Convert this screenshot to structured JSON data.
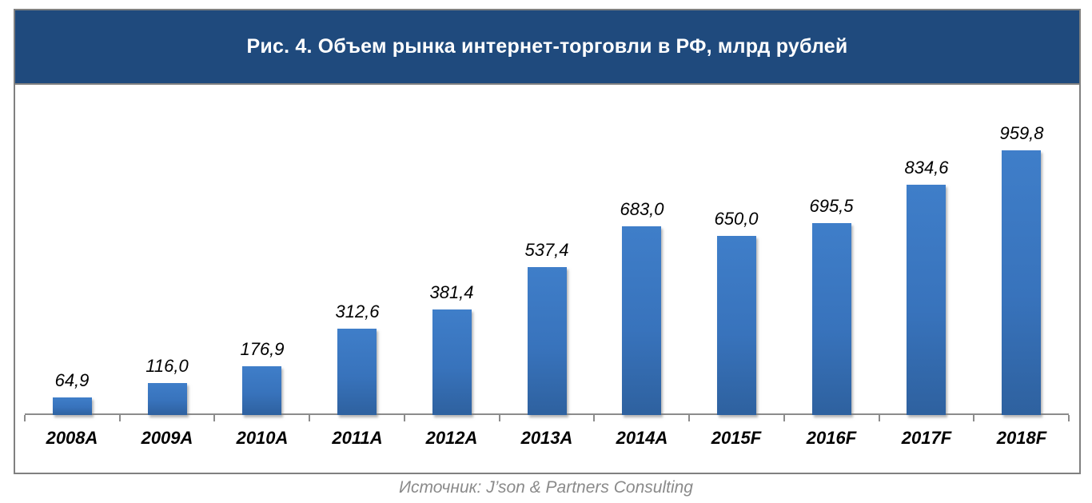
{
  "header": {
    "title": "Рис. 4. Объем рынка интернет-торговли в РФ, млрд рублей"
  },
  "source": {
    "caption": "Источник: J’son & Partners Consulting"
  },
  "colors": {
    "header_bg": "#1F4A7D",
    "header_text": "#FFFFFF",
    "bar_top": "#3F7EC9",
    "bar_mid": "#3873BC",
    "bar_bottom": "#2E619F",
    "axis": "#8C8C8C",
    "frame_border": "#808080",
    "label": "#000000",
    "source_text": "#8A8A8A"
  },
  "chart_data": {
    "type": "bar",
    "title": "Рис. 4. Объем рынка интернет-торговли в РФ, млрд рублей",
    "xlabel": "",
    "ylabel": "млрд рублей",
    "categories": [
      "2008A",
      "2009A",
      "2010A",
      "2011A",
      "2012A",
      "2013A",
      "2014A",
      "2015F",
      "2016F",
      "2017F",
      "2018F"
    ],
    "values": [
      64.9,
      116.0,
      176.9,
      312.6,
      381.4,
      537.4,
      683.0,
      650.0,
      695.5,
      834.6,
      959.8
    ],
    "value_labels": [
      "64,9",
      "116,0",
      "176,9",
      "312,6",
      "381,4",
      "537,4",
      "683,0",
      "650,0",
      "695,5",
      "834,6",
      "959,8"
    ],
    "ylim": [
      0,
      1000
    ],
    "grid": false,
    "legend": false,
    "data_labels_position": "above-bar"
  }
}
